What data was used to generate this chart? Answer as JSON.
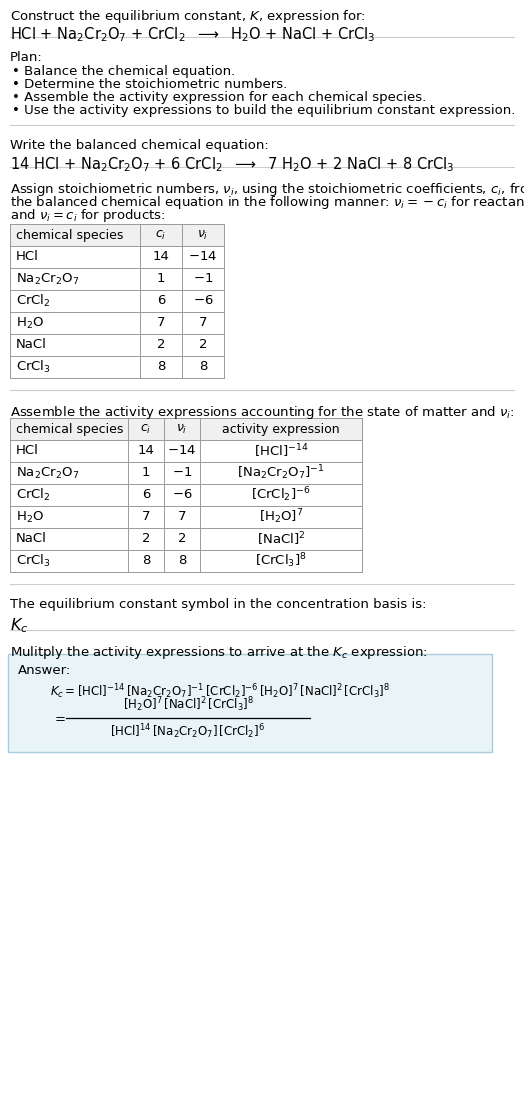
{
  "title_line1": "Construct the equilibrium constant, $K$, expression for:",
  "title_reaction": "HCl + Na$_2$Cr$_2$O$_7$ + CrCl$_2$  $\\longrightarrow$  H$_2$O + NaCl + CrCl$_3$",
  "plan_header": "Plan:",
  "plan_bullets": [
    "• Balance the chemical equation.",
    "• Determine the stoichiometric numbers.",
    "• Assemble the activity expression for each chemical species.",
    "• Use the activity expressions to build the equilibrium constant expression."
  ],
  "balanced_header": "Write the balanced chemical equation:",
  "balanced_eq": "14 HCl + Na$_2$Cr$_2$O$_7$ + 6 CrCl$_2$  $\\longrightarrow$  7 H$_2$O + 2 NaCl + 8 CrCl$_3$",
  "stoich_header_parts": [
    "Assign stoichiometric numbers, $\\nu_i$, using the stoichiometric coefficients, $c_i$, from",
    "the balanced chemical equation in the following manner: $\\nu_i = -c_i$ for reactants",
    "and $\\nu_i = c_i$ for products:"
  ],
  "table1_headers": [
    "chemical species",
    "$c_i$",
    "$\\nu_i$"
  ],
  "table1_rows": [
    [
      "HCl",
      "14",
      "$-14$"
    ],
    [
      "Na$_2$Cr$_2$O$_7$",
      "1",
      "$-1$"
    ],
    [
      "CrCl$_2$",
      "6",
      "$-6$"
    ],
    [
      "H$_2$O",
      "7",
      "7"
    ],
    [
      "NaCl",
      "2",
      "2"
    ],
    [
      "CrCl$_3$",
      "8",
      "8"
    ]
  ],
  "activity_header": "Assemble the activity expressions accounting for the state of matter and $\\nu_i$:",
  "table2_headers": [
    "chemical species",
    "$c_i$",
    "$\\nu_i$",
    "activity expression"
  ],
  "table2_rows": [
    [
      "HCl",
      "14",
      "$-14$",
      "$[\\mathrm{HCl}]^{-14}$"
    ],
    [
      "Na$_2$Cr$_2$O$_7$",
      "1",
      "$-1$",
      "$[\\mathrm{Na_2Cr_2O_7}]^{-1}$"
    ],
    [
      "CrCl$_2$",
      "6",
      "$-6$",
      "$[\\mathrm{CrCl_2}]^{-6}$"
    ],
    [
      "H$_2$O",
      "7",
      "7",
      "$[\\mathrm{H_2O}]^{7}$"
    ],
    [
      "NaCl",
      "2",
      "2",
      "$[\\mathrm{NaCl}]^{2}$"
    ],
    [
      "CrCl$_3$",
      "8",
      "8",
      "$[\\mathrm{CrCl_3}]^{8}$"
    ]
  ],
  "kc_header": "The equilibrium constant symbol in the concentration basis is:",
  "kc_symbol": "$K_c$",
  "multiply_header": "Mulitply the activity expressions to arrive at the $K_c$ expression:",
  "answer_label": "Answer:",
  "answer_line1": "$K_c = [\\mathrm{HCl}]^{-14}\\,[\\mathrm{Na_2Cr_2O_7}]^{-1}\\,[\\mathrm{CrCl_2}]^{-6}\\,[\\mathrm{H_2O}]^{7}\\,[\\mathrm{NaCl}]^{2}\\,[\\mathrm{CrCl_3}]^{8}$",
  "answer_numerator": "$[\\mathrm{H_2O}]^{7}\\,[\\mathrm{NaCl}]^{2}\\,[\\mathrm{CrCl_3}]^{8}$",
  "answer_denominator": "$[\\mathrm{HCl}]^{14}\\,[\\mathrm{Na_2Cr_2O_7}]\\,[\\mathrm{CrCl_2}]^{6}$",
  "bg_color": "#ffffff",
  "answer_box_bg": "#e8f4f8",
  "answer_box_border": "#aaccdd",
  "font_size": 9.5
}
